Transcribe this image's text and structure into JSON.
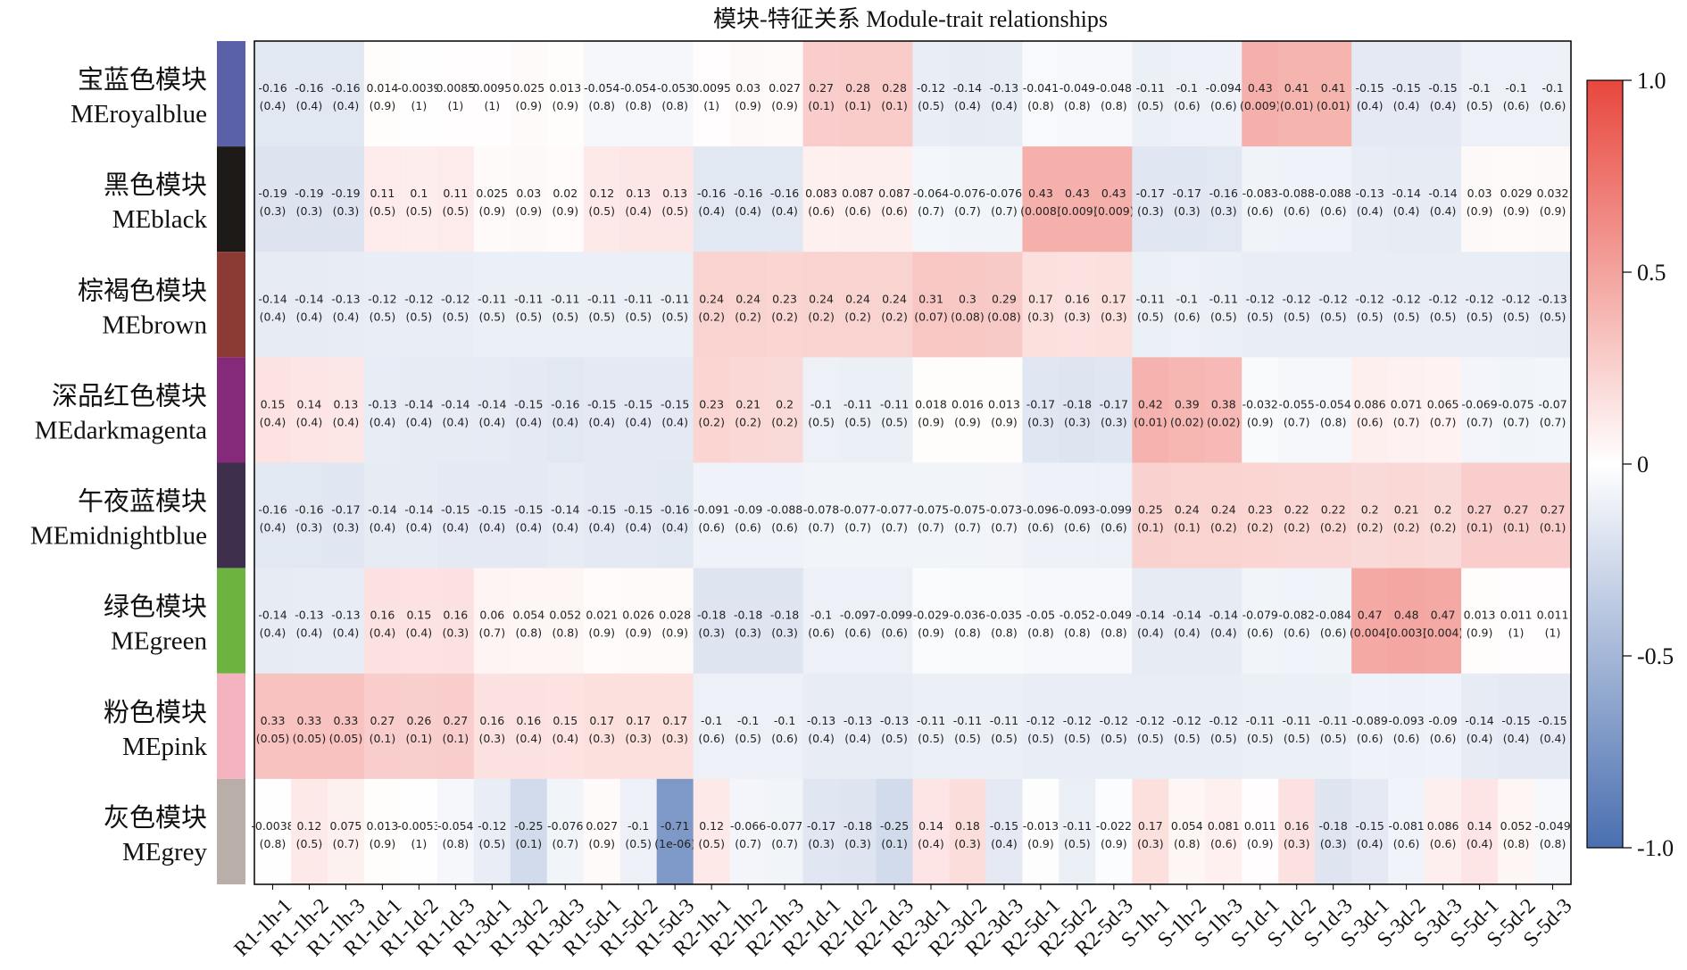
{
  "chart_data": {
    "type": "heatmap",
    "title": "模块-特征关系 Module-trait relationships",
    "columns": [
      "R1-1h-1",
      "R1-1h-2",
      "R1-1h-3",
      "R1-1d-1",
      "R1-1d-2",
      "R1-1d-3",
      "R1-3d-1",
      "R1-3d-2",
      "R1-3d-3",
      "R1-5d-1",
      "R1-5d-2",
      "R1-5d-3",
      "R2-1h-1",
      "R2-1h-2",
      "R2-1h-3",
      "R2-1d-1",
      "R2-1d-2",
      "R2-1d-3",
      "R2-3d-1",
      "R2-3d-2",
      "R2-3d-3",
      "R2-5d-1",
      "R2-5d-2",
      "R2-5d-3",
      "S-1h-1",
      "S-1h-2",
      "S-1h-3",
      "S-1d-1",
      "S-1d-2",
      "S-1d-3",
      "S-3d-1",
      "S-3d-2",
      "S-3d-3",
      "S-5d-1",
      "S-5d-2",
      "S-5d-3"
    ],
    "rows": [
      {
        "label_cn": "宝蓝色模块",
        "label_en": "MEroyalblue",
        "color": "#5a61a8",
        "values": [
          "-0.16",
          "-0.16",
          "-0.16",
          "0.014",
          "-0.0039",
          "0.0085",
          "0.0095",
          "0.025",
          "0.013",
          "-0.054",
          "-0.054",
          "-0.053",
          "0.0095",
          "0.03",
          "0.027",
          "0.27",
          "0.28",
          "0.28",
          "-0.12",
          "-0.14",
          "-0.13",
          "-0.041",
          "-0.049",
          "-0.048",
          "-0.11",
          "-0.1",
          "-0.094",
          "0.43",
          "0.41",
          "0.41",
          "-0.15",
          "-0.15",
          "-0.15",
          "-0.1",
          "-0.1",
          "-0.1"
        ],
        "pvalues": [
          "(0.4)",
          "(0.4)",
          "(0.4)",
          "(0.9)",
          "(1)",
          "(1)",
          "(1)",
          "(0.9)",
          "(0.9)",
          "(0.8)",
          "(0.8)",
          "(0.8)",
          "(1)",
          "(0.9)",
          "(0.9)",
          "(0.1)",
          "(0.1)",
          "(0.1)",
          "(0.5)",
          "(0.4)",
          "(0.4)",
          "(0.8)",
          "(0.8)",
          "(0.8)",
          "(0.5)",
          "(0.6)",
          "(0.6)",
          "(0.009)",
          "(0.01)",
          "(0.01)",
          "(0.4)",
          "(0.4)",
          "(0.4)",
          "(0.5)",
          "(0.6)",
          "(0.6)"
        ]
      },
      {
        "label_cn": "黑色模块",
        "label_en": "MEblack",
        "color": "#1e1a17",
        "values": [
          "-0.19",
          "-0.19",
          "-0.19",
          "0.11",
          "0.1",
          "0.11",
          "0.025",
          "0.03",
          "0.02",
          "0.12",
          "0.13",
          "0.13",
          "-0.16",
          "-0.16",
          "-0.16",
          "0.083",
          "0.087",
          "0.087",
          "-0.064",
          "-0.076",
          "-0.076",
          "0.43",
          "0.43",
          "0.43",
          "-0.17",
          "-0.17",
          "-0.16",
          "-0.083",
          "-0.088",
          "-0.088",
          "-0.13",
          "-0.14",
          "-0.14",
          "0.03",
          "0.029",
          "0.032"
        ],
        "pvalues": [
          "(0.3)",
          "(0.3)",
          "(0.3)",
          "(0.5)",
          "(0.5)",
          "(0.5)",
          "(0.9)",
          "(0.9)",
          "(0.9)",
          "(0.5)",
          "(0.4)",
          "(0.5)",
          "(0.4)",
          "(0.4)",
          "(0.4)",
          "(0.6)",
          "(0.6)",
          "(0.6)",
          "(0.7)",
          "(0.7)",
          "(0.7)",
          "(0.008)",
          "(0.009)",
          "(0.009)",
          "(0.3)",
          "(0.3)",
          "(0.3)",
          "(0.6)",
          "(0.6)",
          "(0.6)",
          "(0.4)",
          "(0.4)",
          "(0.4)",
          "(0.9)",
          "(0.9)",
          "(0.9)"
        ]
      },
      {
        "label_cn": "棕褐色模块",
        "label_en": "MEbrown",
        "color": "#8b3a34",
        "values": [
          "-0.14",
          "-0.14",
          "-0.13",
          "-0.12",
          "-0.12",
          "-0.12",
          "-0.11",
          "-0.11",
          "-0.11",
          "-0.11",
          "-0.11",
          "-0.11",
          "0.24",
          "0.24",
          "0.23",
          "0.24",
          "0.24",
          "0.24",
          "0.31",
          "0.3",
          "0.29",
          "0.17",
          "0.16",
          "0.17",
          "-0.11",
          "-0.1",
          "-0.11",
          "-0.12",
          "-0.12",
          "-0.12",
          "-0.12",
          "-0.12",
          "-0.12",
          "-0.12",
          "-0.12",
          "-0.13"
        ],
        "pvalues": [
          "(0.4)",
          "(0.4)",
          "(0.4)",
          "(0.5)",
          "(0.5)",
          "(0.5)",
          "(0.5)",
          "(0.5)",
          "(0.5)",
          "(0.5)",
          "(0.5)",
          "(0.5)",
          "(0.2)",
          "(0.2)",
          "(0.2)",
          "(0.2)",
          "(0.2)",
          "(0.2)",
          "(0.07)",
          "(0.08)",
          "(0.08)",
          "(0.3)",
          "(0.3)",
          "(0.3)",
          "(0.5)",
          "(0.6)",
          "(0.5)",
          "(0.5)",
          "(0.5)",
          "(0.5)",
          "(0.5)",
          "(0.5)",
          "(0.5)",
          "(0.5)",
          "(0.5)",
          "(0.5)"
        ]
      },
      {
        "label_cn": "深品红色模块",
        "label_en": "MEdarkmagenta",
        "color": "#85297a",
        "values": [
          "0.15",
          "0.14",
          "0.13",
          "-0.13",
          "-0.14",
          "-0.14",
          "-0.14",
          "-0.15",
          "-0.16",
          "-0.15",
          "-0.15",
          "-0.15",
          "0.23",
          "0.21",
          "0.2",
          "-0.1",
          "-0.11",
          "-0.11",
          "0.018",
          "0.016",
          "0.013",
          "-0.17",
          "-0.18",
          "-0.17",
          "0.42",
          "0.39",
          "0.38",
          "-0.032",
          "-0.055",
          "-0.054",
          "0.086",
          "0.071",
          "0.065",
          "-0.069",
          "-0.075",
          "-0.07"
        ],
        "pvalues": [
          "(0.4)",
          "(0.4)",
          "(0.4)",
          "(0.4)",
          "(0.4)",
          "(0.4)",
          "(0.4)",
          "(0.4)",
          "(0.4)",
          "(0.4)",
          "(0.4)",
          "(0.4)",
          "(0.2)",
          "(0.2)",
          "(0.2)",
          "(0.5)",
          "(0.5)",
          "(0.5)",
          "(0.9)",
          "(0.9)",
          "(0.9)",
          "(0.3)",
          "(0.3)",
          "(0.3)",
          "(0.01)",
          "(0.02)",
          "(0.02)",
          "(0.9)",
          "(0.7)",
          "(0.8)",
          "(0.6)",
          "(0.7)",
          "(0.7)",
          "(0.7)",
          "(0.7)",
          "(0.7)"
        ]
      },
      {
        "label_cn": "午夜蓝模块",
        "label_en": "MEmidnightblue",
        "color": "#3e2f4d",
        "values": [
          "-0.16",
          "-0.16",
          "-0.17",
          "-0.14",
          "-0.14",
          "-0.15",
          "-0.15",
          "-0.15",
          "-0.14",
          "-0.15",
          "-0.15",
          "-0.16",
          "-0.091",
          "-0.09",
          "-0.088",
          "-0.078",
          "-0.077",
          "-0.077",
          "-0.075",
          "-0.075",
          "-0.073",
          "-0.096",
          "-0.093",
          "-0.099",
          "0.25",
          "0.24",
          "0.24",
          "0.23",
          "0.22",
          "0.22",
          "0.2",
          "0.21",
          "0.2",
          "0.27",
          "0.27",
          "0.27"
        ],
        "pvalues": [
          "(0.4)",
          "(0.3)",
          "(0.3)",
          "(0.4)",
          "(0.4)",
          "(0.4)",
          "(0.4)",
          "(0.4)",
          "(0.4)",
          "(0.4)",
          "(0.4)",
          "(0.4)",
          "(0.6)",
          "(0.6)",
          "(0.6)",
          "(0.7)",
          "(0.7)",
          "(0.7)",
          "(0.7)",
          "(0.7)",
          "(0.7)",
          "(0.6)",
          "(0.6)",
          "(0.6)",
          "(0.1)",
          "(0.1)",
          "(0.2)",
          "(0.2)",
          "(0.2)",
          "(0.2)",
          "(0.2)",
          "(0.2)",
          "(0.2)",
          "(0.1)",
          "(0.1)",
          "(0.1)"
        ]
      },
      {
        "label_cn": "绿色模块",
        "label_en": "MEgreen",
        "color": "#6db33f",
        "values": [
          "-0.14",
          "-0.13",
          "-0.13",
          "0.16",
          "0.15",
          "0.16",
          "0.06",
          "0.054",
          "0.052",
          "0.021",
          "0.026",
          "0.028",
          "-0.18",
          "-0.18",
          "-0.18",
          "-0.1",
          "-0.097",
          "-0.099",
          "-0.029",
          "-0.036",
          "-0.035",
          "-0.05",
          "-0.052",
          "-0.049",
          "-0.14",
          "-0.14",
          "-0.14",
          "-0.079",
          "-0.082",
          "-0.084",
          "0.47",
          "0.48",
          "0.47",
          "0.013",
          "0.011",
          "0.011"
        ],
        "pvalues": [
          "(0.4)",
          "(0.4)",
          "(0.4)",
          "(0.4)",
          "(0.4)",
          "(0.3)",
          "(0.7)",
          "(0.8)",
          "(0.8)",
          "(0.9)",
          "(0.9)",
          "(0.9)",
          "(0.3)",
          "(0.3)",
          "(0.3)",
          "(0.6)",
          "(0.6)",
          "(0.6)",
          "(0.9)",
          "(0.8)",
          "(0.8)",
          "(0.8)",
          "(0.8)",
          "(0.8)",
          "(0.4)",
          "(0.4)",
          "(0.4)",
          "(0.6)",
          "(0.6)",
          "(0.6)",
          "(0.004)",
          "(0.003)",
          "(0.004)",
          "(0.9)",
          "(1)",
          "(1)"
        ]
      },
      {
        "label_cn": "粉色模块",
        "label_en": "MEpink",
        "color": "#f5b3c0",
        "values": [
          "0.33",
          "0.33",
          "0.33",
          "0.27",
          "0.26",
          "0.27",
          "0.16",
          "0.16",
          "0.15",
          "0.17",
          "0.17",
          "0.17",
          "-0.1",
          "-0.1",
          "-0.1",
          "-0.13",
          "-0.13",
          "-0.13",
          "-0.11",
          "-0.11",
          "-0.11",
          "-0.12",
          "-0.12",
          "-0.12",
          "-0.12",
          "-0.12",
          "-0.12",
          "-0.11",
          "-0.11",
          "-0.11",
          "-0.089",
          "-0.093",
          "-0.09",
          "-0.14",
          "-0.15",
          "-0.15"
        ],
        "pvalues": [
          "(0.05)",
          "(0.05)",
          "(0.05)",
          "(0.1)",
          "(0.1)",
          "(0.1)",
          "(0.3)",
          "(0.4)",
          "(0.4)",
          "(0.3)",
          "(0.3)",
          "(0.3)",
          "(0.6)",
          "(0.5)",
          "(0.6)",
          "(0.4)",
          "(0.4)",
          "(0.5)",
          "(0.5)",
          "(0.5)",
          "(0.5)",
          "(0.5)",
          "(0.5)",
          "(0.5)",
          "(0.5)",
          "(0.5)",
          "(0.5)",
          "(0.5)",
          "(0.5)",
          "(0.5)",
          "(0.6)",
          "(0.6)",
          "(0.6)",
          "(0.4)",
          "(0.4)",
          "(0.4)"
        ]
      },
      {
        "label_cn": "灰色模块",
        "label_en": "MEgrey",
        "color": "#b9aea8",
        "values": [
          "-0.0038",
          "0.12",
          "0.075",
          "0.013",
          "-0.0053",
          "-0.054",
          "-0.12",
          "-0.25",
          "-0.076",
          "0.027",
          "-0.1",
          "-0.71",
          "0.12",
          "-0.066",
          "-0.077",
          "-0.17",
          "-0.18",
          "-0.25",
          "0.14",
          "0.18",
          "-0.15",
          "-0.013",
          "-0.11",
          "-0.022",
          "0.17",
          "0.054",
          "0.081",
          "0.011",
          "0.16",
          "-0.18",
          "-0.15",
          "-0.081",
          "0.086",
          "0.14",
          "0.052",
          "-0.049"
        ],
        "pvalues": [
          "(0.8)",
          "(0.5)",
          "(0.7)",
          "(0.9)",
          "(1)",
          "(0.8)",
          "(0.5)",
          "(0.1)",
          "(0.7)",
          "(0.9)",
          "(0.5)",
          "(1e-06)",
          "(0.5)",
          "(0.7)",
          "(0.7)",
          "(0.3)",
          "(0.3)",
          "(0.1)",
          "(0.4)",
          "(0.3)",
          "(0.4)",
          "(0.9)",
          "(0.5)",
          "(0.9)",
          "(0.3)",
          "(0.8)",
          "(0.6)",
          "(0.9)",
          "(0.3)",
          "(0.3)",
          "(0.4)",
          "(0.6)",
          "(0.6)",
          "(0.4)",
          "(0.8)",
          "(0.8)"
        ]
      }
    ],
    "colorbar": {
      "ticks": [
        "1.0",
        "0.5",
        "0",
        "-0.5",
        "-1.0"
      ],
      "range": [
        -1,
        1
      ],
      "colors": {
        "low": "#4a6fb0",
        "mid": "#ffffff",
        "high": "#e8473d"
      }
    }
  }
}
